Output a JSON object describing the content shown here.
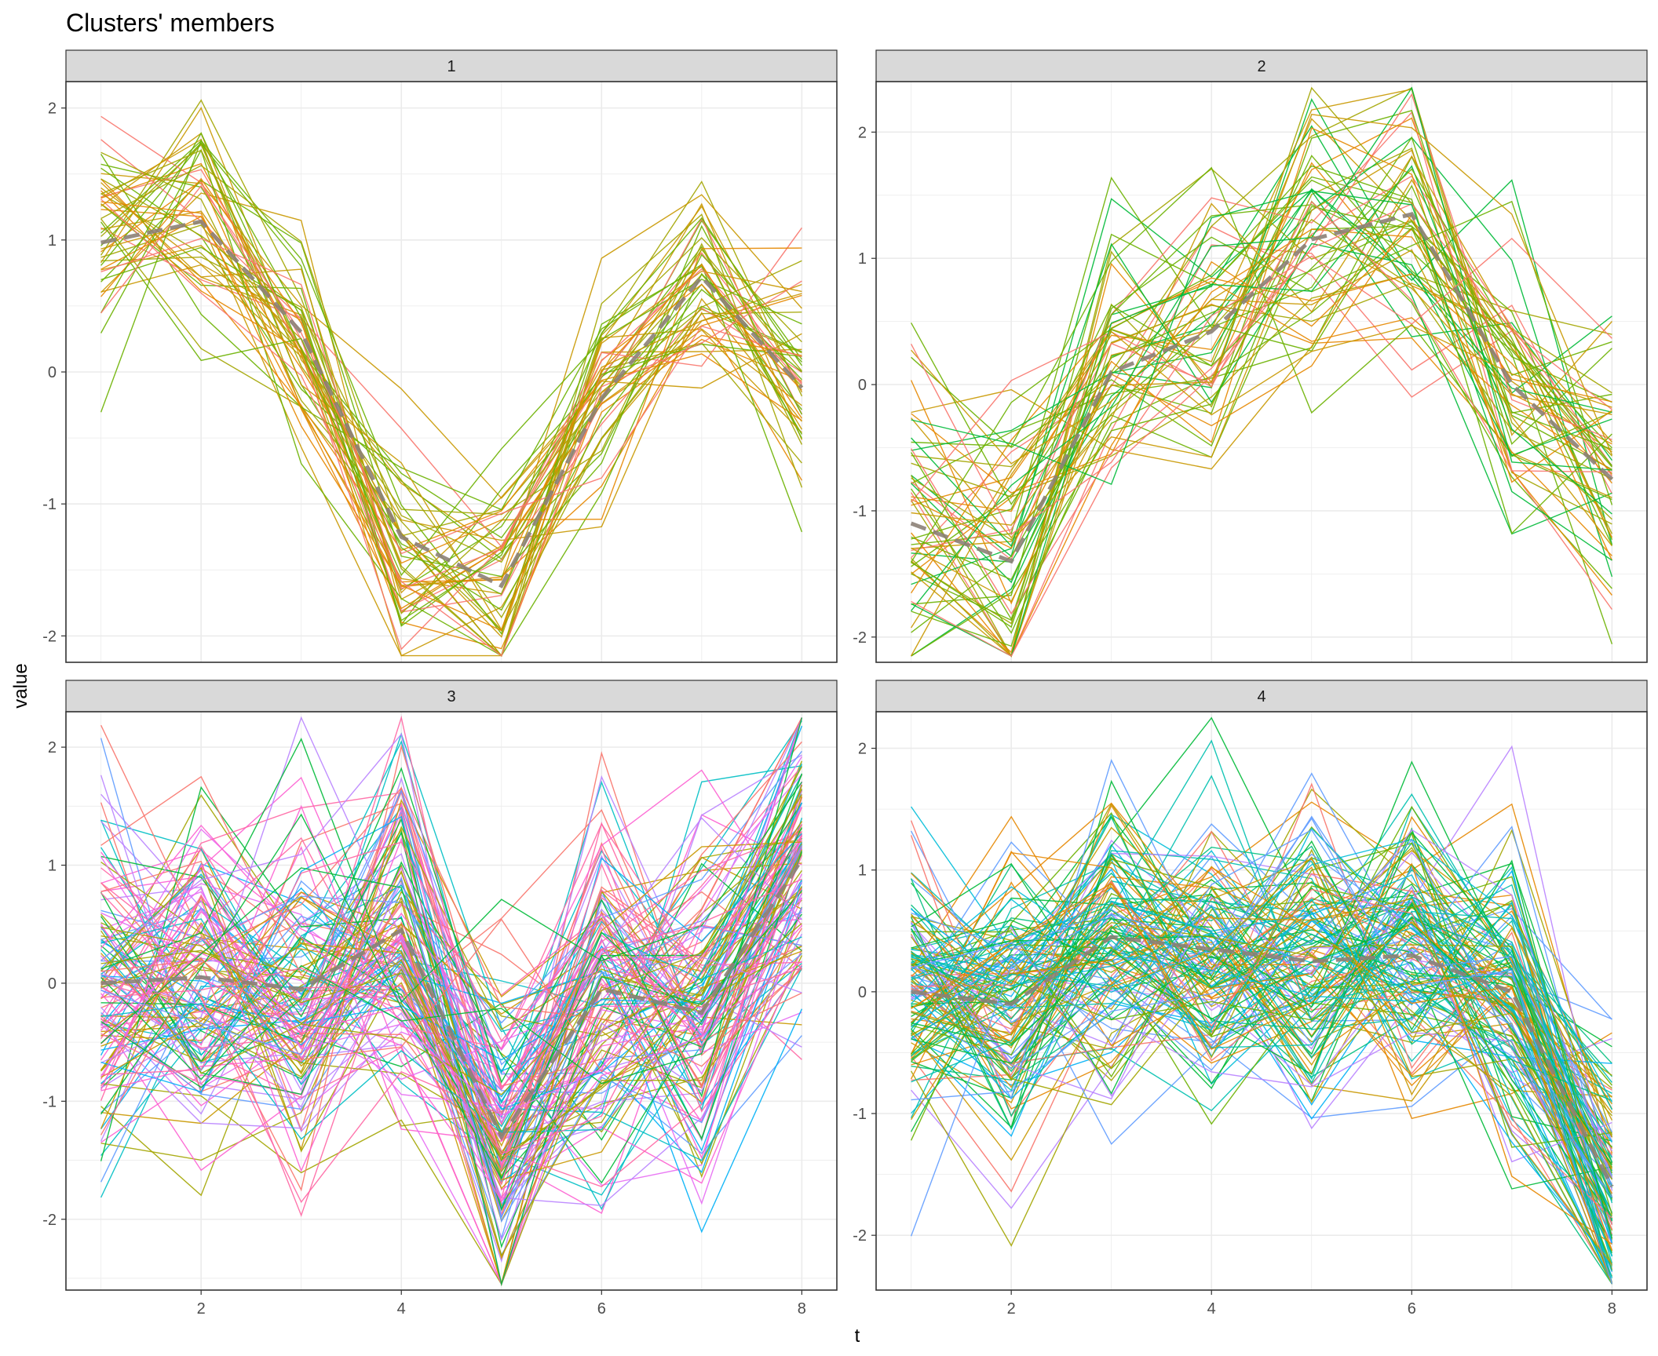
{
  "chart_data": {
    "type": "line",
    "title": "Clusters' members",
    "xlabel": "t",
    "ylabel": "value",
    "grid": true,
    "legend": "none",
    "x": [
      1,
      2,
      3,
      4,
      5,
      6,
      7,
      8
    ],
    "x_ticks": [
      "2",
      "4",
      "6",
      "8"
    ],
    "xlim": [
      0.65,
      8.35
    ],
    "centroid_style": "dashed grey",
    "panels": [
      {
        "label": "1",
        "ylim": [
          -2.2,
          2.2
        ],
        "y_ticks": [
          "-2",
          "-1",
          "0",
          "1",
          "2"
        ],
        "n_members": 50,
        "palette": [
          "#f8766d",
          "#e58700",
          "#c99800",
          "#a3a500",
          "#6bb100"
        ],
        "spread": 0.45,
        "centroid": [
          0.98,
          1.14,
          0.3,
          -1.25,
          -1.62,
          -0.2,
          0.72,
          -0.12
        ]
      },
      {
        "label": "2",
        "ylim": [
          -2.2,
          2.4
        ],
        "y_ticks": [
          "-2",
          "-1",
          "0",
          "1",
          "2"
        ],
        "n_members": 60,
        "palette": [
          "#f8766d",
          "#e58700",
          "#c99800",
          "#a3a500",
          "#6bb100",
          "#00ba38"
        ],
        "spread": 0.6,
        "centroid": [
          -1.1,
          -1.4,
          0.1,
          0.42,
          1.15,
          1.35,
          0.0,
          -0.75
        ]
      },
      {
        "label": "3",
        "ylim": [
          -2.6,
          2.3
        ],
        "y_ticks": [
          "-2",
          "-1",
          "0",
          "1",
          "2"
        ],
        "n_members": 140,
        "palette": [
          "#f8766d",
          "#c99800",
          "#a3a500",
          "#00ba38",
          "#00bfc4",
          "#00b0f6",
          "#619cff",
          "#b983ff",
          "#e76bf3",
          "#fd61d1",
          "#ff67a4"
        ],
        "spread": 0.75,
        "centroid": [
          0.0,
          0.05,
          -0.05,
          0.45,
          -1.3,
          -0.05,
          -0.25,
          1.05
        ]
      },
      {
        "label": "4",
        "ylim": [
          -2.45,
          2.3
        ],
        "y_ticks": [
          "-2",
          "-1",
          "0",
          "1",
          "2"
        ],
        "n_members": 140,
        "palette": [
          "#f8766d",
          "#e58700",
          "#c99800",
          "#a3a500",
          "#6bb100",
          "#00ba38",
          "#00bf7d",
          "#00c0af",
          "#00bcd8",
          "#00b0f6",
          "#619cff",
          "#b983ff"
        ],
        "spread": 0.62,
        "centroid": [
          0.0,
          -0.1,
          0.45,
          0.35,
          0.25,
          0.3,
          0.0,
          -1.6
        ]
      }
    ]
  }
}
